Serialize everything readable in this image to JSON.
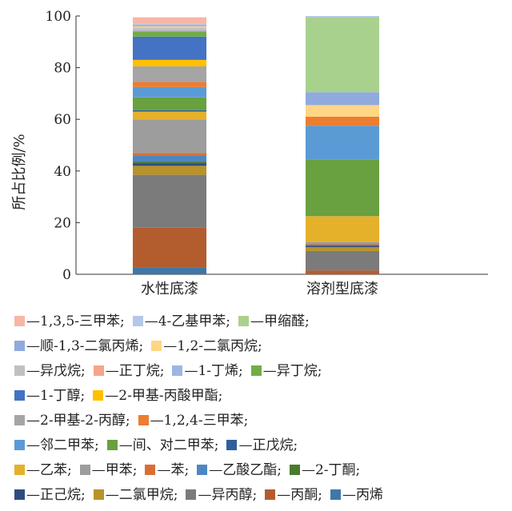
{
  "chart_data": {
    "type": "bar",
    "stacked": true,
    "title": "",
    "ylabel": "所占比例/%",
    "xlabel": "",
    "ylim": [
      0,
      100
    ],
    "yticks": [
      0,
      20,
      40,
      60,
      80,
      100
    ],
    "grid": false,
    "legend_position": "bottom",
    "categories": [
      "水性底漆",
      "溶剂型底漆"
    ],
    "series": [
      {
        "name": "丙烯",
        "color": "#3f77a8",
        "values": [
          2.5,
          0
        ]
      },
      {
        "name": "丙酮",
        "color": "#b35d2e",
        "values": [
          15.5,
          1.5
        ]
      },
      {
        "name": "异丙醇",
        "color": "#7b7b7b",
        "values": [
          20.5,
          7.5
        ]
      },
      {
        "name": "二氯甲烷",
        "color": "#b8922a",
        "values": [
          3.5,
          1.5
        ]
      },
      {
        "name": "正己烷",
        "color": "#2f4d7c",
        "values": [
          1.0,
          0.5
        ]
      },
      {
        "name": "2-丁酮",
        "color": "#4b7a2d",
        "values": [
          0.5,
          0
        ]
      },
      {
        "name": "乙酸乙酯",
        "color": "#4f86c2",
        "values": [
          2.5,
          0.5
        ]
      },
      {
        "name": "苯",
        "color": "#d96e35",
        "values": [
          1.0,
          0.5
        ]
      },
      {
        "name": "甲苯",
        "color": "#9d9d9d",
        "values": [
          13.0,
          0.5
        ]
      },
      {
        "name": "乙苯",
        "color": "#e5b12b",
        "values": [
          3.0,
          10.0
        ]
      },
      {
        "name": "正戊烷",
        "color": "#2f5f9a",
        "values": [
          0.5,
          0
        ]
      },
      {
        "name": "间、对二甲苯",
        "color": "#69a040",
        "values": [
          5.0,
          22.0
        ]
      },
      {
        "name": "邻二甲苯",
        "color": "#5b9bd5",
        "values": [
          4.0,
          13.0
        ]
      },
      {
        "name": "1,2,4-三甲苯",
        "color": "#ed7d31",
        "values": [
          2.0,
          3.5
        ]
      },
      {
        "name": "2-甲基-2-丙醇",
        "color": "#a5a5a5",
        "values": [
          6.0,
          0
        ]
      },
      {
        "name": "2-甲基-丙酸甲酯",
        "color": "#ffc000",
        "values": [
          2.5,
          0
        ]
      },
      {
        "name": "1-丁醇",
        "color": "#4472c4",
        "values": [
          9.0,
          0
        ]
      },
      {
        "name": "异丁烷",
        "color": "#70ad47",
        "values": [
          2.0,
          0
        ]
      },
      {
        "name": "1-丁烯",
        "color": "#9db6e0",
        "values": [
          0.5,
          0
        ]
      },
      {
        "name": "正丁烷",
        "color": "#f4a58a",
        "values": [
          0.5,
          0
        ]
      },
      {
        "name": "异戊烷",
        "color": "#c0c0c0",
        "values": [
          0.5,
          0
        ]
      },
      {
        "name": "1,2-二氯丙烷",
        "color": "#ffd685",
        "values": [
          0.5,
          4.5
        ]
      },
      {
        "name": "顺-1,3-二氯丙烯",
        "color": "#8faadc",
        "values": [
          0.5,
          5.0
        ]
      },
      {
        "name": "甲缩醛",
        "color": "#a9d18e",
        "values": [
          0,
          29.0
        ]
      },
      {
        "name": "4-乙基甲苯",
        "color": "#b4c7e7",
        "values": [
          0.5,
          0.5
        ]
      },
      {
        "name": "1,3,5-三甲苯",
        "color": "#f8b5a5",
        "values": [
          2.5,
          0
        ]
      }
    ]
  },
  "legend": {
    "prefix": "—",
    "rows": [
      [
        "1,3,5-三甲苯;",
        "4-乙基甲苯;",
        "甲缩醛;"
      ],
      [
        "顺-1,3-二氯丙烯;",
        "1,2-二氯丙烷;"
      ],
      [
        "异戊烷;",
        "正丁烷;",
        "1-丁烯;",
        "异丁烷;"
      ],
      [
        "1-丁醇;",
        "2-甲基-丙酸甲酯;"
      ],
      [
        "2-甲基-2-丙醇;",
        "1,2,4-三甲苯;"
      ],
      [
        "邻二甲苯;",
        "间、对二甲苯;",
        "正戊烷;"
      ],
      [
        "乙苯;",
        "甲苯;",
        "苯;",
        "乙酸乙酯;",
        "2-丁酮;"
      ],
      [
        "正己烷;",
        "二氯甲烷;",
        "异丙醇;",
        "丙酮;",
        "丙烯"
      ]
    ]
  }
}
